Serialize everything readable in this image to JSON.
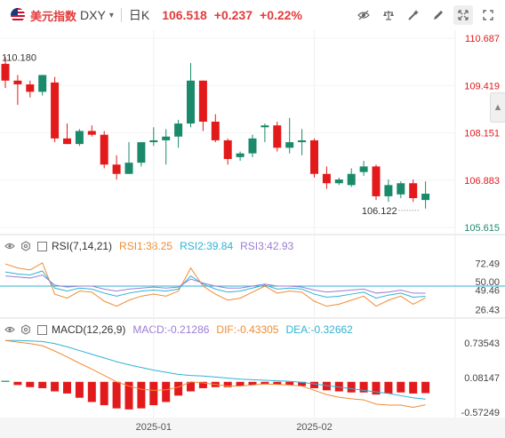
{
  "header": {
    "symbol_name": "美元指数",
    "symbol_code": "DXY",
    "period": "日K",
    "price": "106.518",
    "change": "+0.237",
    "change_pct": "+0.22%"
  },
  "colors": {
    "up": "#1b8a6b",
    "down": "#e31a1c",
    "rsi1": "#f08c34",
    "rsi2": "#2fb3d3",
    "rsi3": "#9b7dd4",
    "macd_line": "#2fb3d3",
    "dif_line": "#f08c34"
  },
  "icons": {
    "tools": [
      "eye-off-icon",
      "balance-icon",
      "magic-wand-icon",
      "pen-icon",
      "fullscreen-icon",
      "expand-icon"
    ],
    "side_tab": "chevron-up-icon"
  },
  "rsi": {
    "title": "RSI(7,14,21)",
    "rsi1": "RSI1:38.25",
    "rsi2": "RSI2:39.84",
    "rsi3": "RSI3:42.93"
  },
  "macd": {
    "title": "MACD(12,26,9)",
    "macd": "MACD:-0.21286",
    "dif": "DIF:-0.43305",
    "dea": "DEA:-0.32662"
  },
  "chart_data": {
    "type": "candlestick",
    "price_axis": [
      "110.687",
      "109.419",
      "108.151",
      "106.883",
      "105.615"
    ],
    "price_axis_range": [
      105.615,
      110.687
    ],
    "high_label": "110.180",
    "low_label": "106.122",
    "current_price": 106.518,
    "x_ticks": [
      {
        "index": 12,
        "label": "2025-01"
      },
      {
        "index": 25,
        "label": "2025-02"
      }
    ],
    "candles": [
      {
        "o": 110.0,
        "h": 110.18,
        "l": 109.35,
        "c": 109.55
      },
      {
        "o": 109.55,
        "h": 109.7,
        "l": 108.9,
        "c": 109.45
      },
      {
        "o": 109.45,
        "h": 109.55,
        "l": 109.1,
        "c": 109.25
      },
      {
        "o": 109.25,
        "h": 109.7,
        "l": 109.15,
        "c": 109.7
      },
      {
        "o": 109.5,
        "h": 109.65,
        "l": 107.9,
        "c": 108.0
      },
      {
        "o": 108.0,
        "h": 108.4,
        "l": 107.85,
        "c": 107.85
      },
      {
        "o": 107.85,
        "h": 108.25,
        "l": 107.8,
        "c": 108.2
      },
      {
        "o": 108.2,
        "h": 108.35,
        "l": 108.05,
        "c": 108.1
      },
      {
        "o": 108.1,
        "h": 108.2,
        "l": 107.2,
        "c": 107.3
      },
      {
        "o": 107.3,
        "h": 107.55,
        "l": 106.9,
        "c": 107.05
      },
      {
        "o": 107.05,
        "h": 107.9,
        "l": 107.05,
        "c": 107.35
      },
      {
        "o": 107.35,
        "h": 107.9,
        "l": 107.25,
        "c": 107.9
      },
      {
        "o": 107.9,
        "h": 108.3,
        "l": 107.8,
        "c": 107.95
      },
      {
        "o": 107.95,
        "h": 108.25,
        "l": 107.3,
        "c": 108.05
      },
      {
        "o": 108.05,
        "h": 108.5,
        "l": 107.75,
        "c": 108.4
      },
      {
        "o": 108.4,
        "h": 110.02,
        "l": 108.3,
        "c": 109.55
      },
      {
        "o": 109.55,
        "h": 109.55,
        "l": 108.2,
        "c": 108.45
      },
      {
        "o": 108.45,
        "h": 108.65,
        "l": 107.9,
        "c": 107.95
      },
      {
        "o": 107.95,
        "h": 108.0,
        "l": 107.3,
        "c": 107.45
      },
      {
        "o": 107.5,
        "h": 107.65,
        "l": 107.4,
        "c": 107.6
      },
      {
        "o": 107.6,
        "h": 108.1,
        "l": 107.5,
        "c": 108.0
      },
      {
        "o": 108.3,
        "h": 108.4,
        "l": 107.9,
        "c": 108.35
      },
      {
        "o": 108.35,
        "h": 108.45,
        "l": 107.65,
        "c": 107.75
      },
      {
        "o": 107.75,
        "h": 108.55,
        "l": 107.6,
        "c": 107.9
      },
      {
        "o": 107.9,
        "h": 108.25,
        "l": 107.55,
        "c": 107.95
      },
      {
        "o": 107.95,
        "h": 108.0,
        "l": 106.95,
        "c": 107.05
      },
      {
        "o": 107.05,
        "h": 107.25,
        "l": 106.65,
        "c": 106.8
      },
      {
        "o": 106.8,
        "h": 106.95,
        "l": 106.75,
        "c": 106.9
      },
      {
        "o": 106.75,
        "h": 107.2,
        "l": 106.7,
        "c": 107.05
      },
      {
        "o": 107.1,
        "h": 107.4,
        "l": 107.0,
        "c": 107.25
      },
      {
        "o": 107.25,
        "h": 107.3,
        "l": 106.35,
        "c": 106.45
      },
      {
        "o": 106.45,
        "h": 106.9,
        "l": 106.3,
        "c": 106.75
      },
      {
        "o": 106.5,
        "h": 106.85,
        "l": 106.4,
        "c": 106.8
      },
      {
        "o": 106.8,
        "h": 106.9,
        "l": 106.3,
        "c": 106.4
      },
      {
        "o": 106.35,
        "h": 106.85,
        "l": 106.12,
        "c": 106.52
      }
    ],
    "rsi_axis": [
      "72.49",
      "50.00",
      "49.46",
      "26.43"
    ],
    "rsi_range": [
      20,
      80
    ],
    "rsi_ref_level": 50.0,
    "rsi1": [
      72,
      68,
      66,
      73,
      42,
      38,
      45,
      44,
      35,
      30,
      36,
      40,
      42,
      40,
      45,
      68,
      50,
      42,
      36,
      38,
      44,
      50,
      43,
      45,
      44,
      35,
      30,
      32,
      36,
      40,
      30,
      36,
      40,
      32,
      38.25
    ],
    "rsi2": [
      64,
      62,
      61,
      65,
      48,
      45,
      48,
      47,
      43,
      40,
      43,
      45,
      46,
      45,
      47,
      60,
      52,
      47,
      44,
      45,
      48,
      51,
      47,
      48,
      47,
      42,
      39,
      40,
      42,
      44,
      38,
      41,
      43,
      39,
      39.84
    ],
    "rsi3": [
      60,
      59,
      58,
      61,
      51,
      49,
      50,
      50,
      47,
      45,
      47,
      48,
      49,
      48,
      49,
      57,
      53,
      50,
      48,
      48,
      50,
      52,
      50,
      50,
      49,
      46,
      44,
      45,
      46,
      47,
      43,
      44,
      46,
      43,
      42.93
    ],
    "macd_axis": [
      "0.73543",
      "0.08147",
      "-0.57249"
    ],
    "macd_range": [
      -0.64,
      0.8
    ],
    "macd_hist": [
      0.02,
      -0.06,
      -0.1,
      -0.12,
      -0.18,
      -0.22,
      -0.3,
      -0.38,
      -0.44,
      -0.5,
      -0.52,
      -0.5,
      -0.44,
      -0.38,
      -0.26,
      -0.18,
      -0.12,
      -0.1,
      -0.1,
      -0.08,
      -0.06,
      -0.05,
      -0.05,
      -0.06,
      -0.08,
      -0.12,
      -0.16,
      -0.18,
      -0.2,
      -0.2,
      -0.24,
      -0.22,
      -0.2,
      -0.22,
      -0.21286
    ],
    "macd_line": [
      0.78,
      0.78,
      0.77,
      0.76,
      0.72,
      0.66,
      0.59,
      0.52,
      0.45,
      0.38,
      0.32,
      0.27,
      0.22,
      0.18,
      0.14,
      0.12,
      0.11,
      0.09,
      0.07,
      0.05,
      0.04,
      0.03,
      0.02,
      0.01,
      -0.01,
      -0.04,
      -0.07,
      -0.1,
      -0.13,
      -0.16,
      -0.19,
      -0.22,
      -0.26,
      -0.3,
      -0.32662
    ],
    "dif_line": [
      0.78,
      0.75,
      0.72,
      0.68,
      0.58,
      0.47,
      0.35,
      0.24,
      0.12,
      0.0,
      -0.08,
      -0.14,
      -0.16,
      -0.15,
      -0.1,
      0.0,
      -0.02,
      -0.05,
      -0.08,
      -0.08,
      -0.06,
      -0.04,
      -0.05,
      -0.06,
      -0.08,
      -0.16,
      -0.24,
      -0.29,
      -0.32,
      -0.34,
      -0.42,
      -0.44,
      -0.44,
      -0.48,
      -0.43305
    ]
  }
}
